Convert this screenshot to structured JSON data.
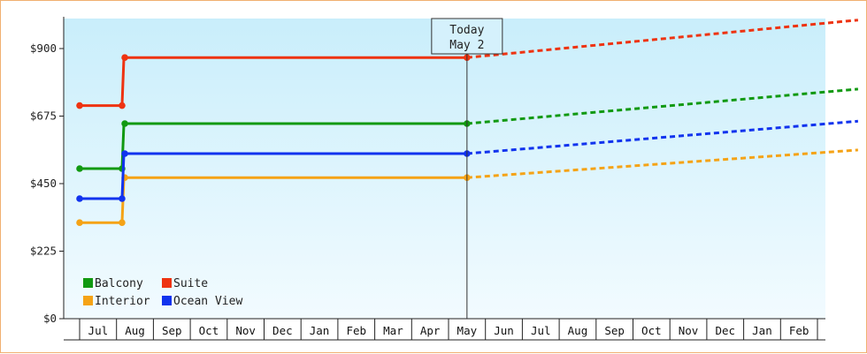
{
  "chart_data": {
    "type": "line",
    "title": "",
    "xlabel": "",
    "ylabel": "",
    "ylim": [
      0,
      1000
    ],
    "yticks": [
      {
        "value": 0,
        "label": "$0"
      },
      {
        "value": 225,
        "label": "$225"
      },
      {
        "value": 450,
        "label": "$450"
      },
      {
        "value": 675,
        "label": "$675"
      },
      {
        "value": 900,
        "label": "$900"
      }
    ],
    "months": [
      "Jul",
      "Aug",
      "Sep",
      "Oct",
      "Nov",
      "Dec",
      "Jan",
      "Feb",
      "Mar",
      "Apr",
      "May",
      "Jun",
      "Jul",
      "Aug",
      "Sep",
      "Oct",
      "Nov",
      "Dec",
      "Jan",
      "Feb"
    ],
    "today": {
      "line1": "Today",
      "line2": "May 2",
      "month_index": 10.0
    },
    "series": [
      {
        "name": "Balcony",
        "color": "#119911",
        "actual": [
          [
            -0.5,
            500
          ],
          [
            0.65,
            500
          ],
          [
            0.7,
            650
          ],
          [
            10.0,
            650
          ]
        ],
        "forecast": [
          [
            10.0,
            650
          ],
          [
            20.6,
            765
          ]
        ]
      },
      {
        "name": "Suite",
        "color": "#ee3311",
        "actual": [
          [
            -0.5,
            710
          ],
          [
            0.65,
            710
          ],
          [
            0.7,
            870
          ],
          [
            10.0,
            870
          ]
        ],
        "forecast": [
          [
            10.0,
            870
          ],
          [
            20.6,
            995
          ]
        ]
      },
      {
        "name": "Interior",
        "color": "#f5a316",
        "actual": [
          [
            -0.5,
            320
          ],
          [
            0.65,
            320
          ],
          [
            0.7,
            470
          ],
          [
            10.0,
            470
          ]
        ],
        "forecast": [
          [
            10.0,
            470
          ],
          [
            20.6,
            562
          ]
        ]
      },
      {
        "name": "Ocean View",
        "color": "#1133ee",
        "actual": [
          [
            -0.5,
            400
          ],
          [
            0.65,
            400
          ],
          [
            0.7,
            550
          ],
          [
            10.0,
            550
          ]
        ],
        "forecast": [
          [
            10.0,
            550
          ],
          [
            20.6,
            658
          ]
        ]
      }
    ],
    "legend_position": "bottom-left",
    "grid": false
  }
}
